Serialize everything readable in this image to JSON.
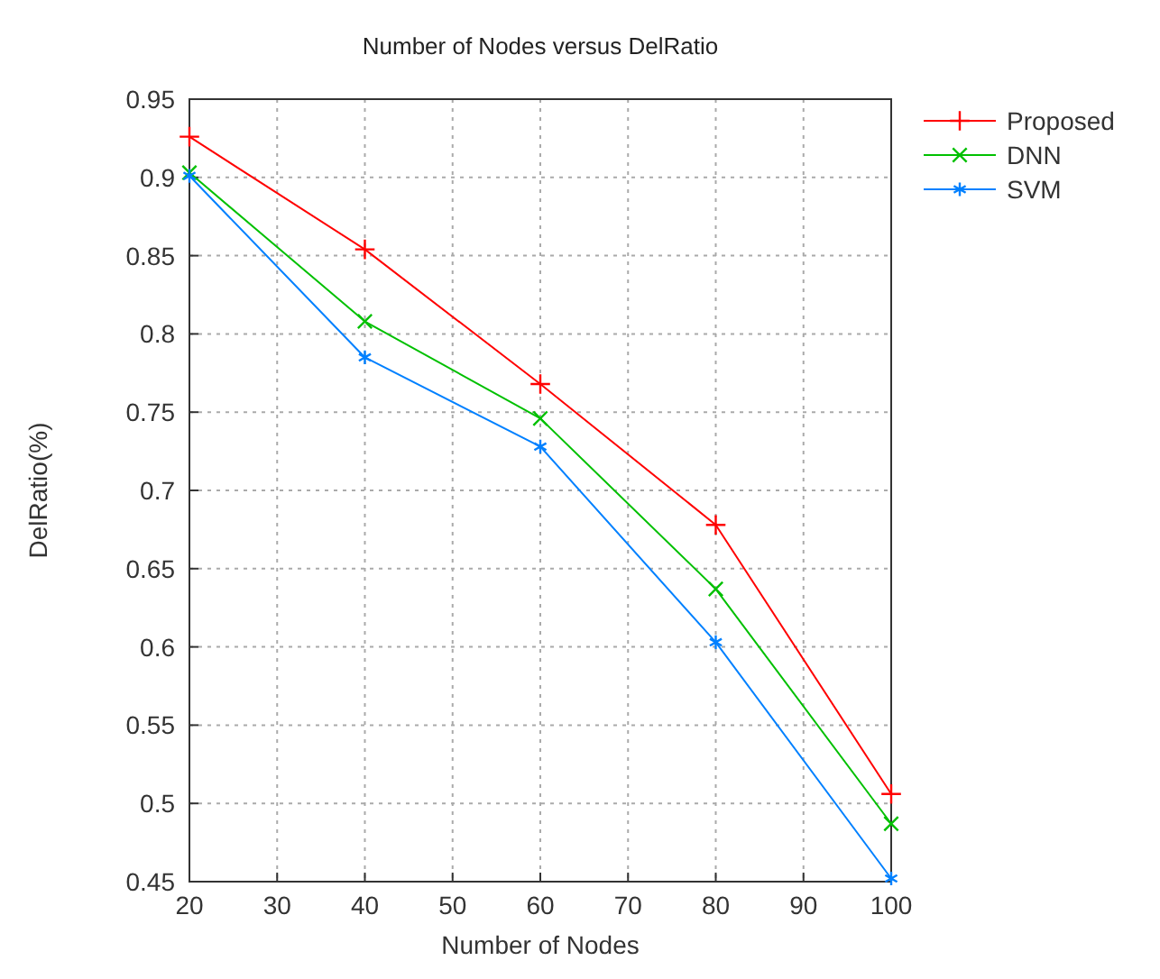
{
  "chart_data": {
    "type": "line",
    "title": "Number of Nodes versus DelRatio",
    "xlabel": "Number of Nodes",
    "ylabel": "DelRatio(%)",
    "x": [
      20,
      40,
      60,
      80,
      100
    ],
    "series": [
      {
        "name": "Proposed",
        "color": "#ff0000",
        "marker": "cross",
        "values": [
          0.926,
          0.854,
          0.768,
          0.678,
          0.506
        ]
      },
      {
        "name": "DNN",
        "color": "#00c000",
        "marker": "cross",
        "values": [
          0.903,
          0.808,
          0.746,
          0.637,
          0.487
        ]
      },
      {
        "name": "SVM",
        "color": "#0080ff",
        "marker": "cross",
        "values": [
          0.901,
          0.785,
          0.728,
          0.603,
          0.452
        ]
      }
    ],
    "xlim": [
      20,
      100
    ],
    "xticks": [
      20,
      30,
      40,
      50,
      60,
      70,
      80,
      90,
      100
    ],
    "ylim": [
      0.45,
      0.95
    ],
    "yticks": [
      0.45,
      0.5,
      0.55,
      0.6,
      0.65,
      0.7,
      0.75,
      0.8,
      0.85,
      0.9,
      0.95
    ],
    "grid": true,
    "legend": "top right",
    "line_style": "solid"
  }
}
